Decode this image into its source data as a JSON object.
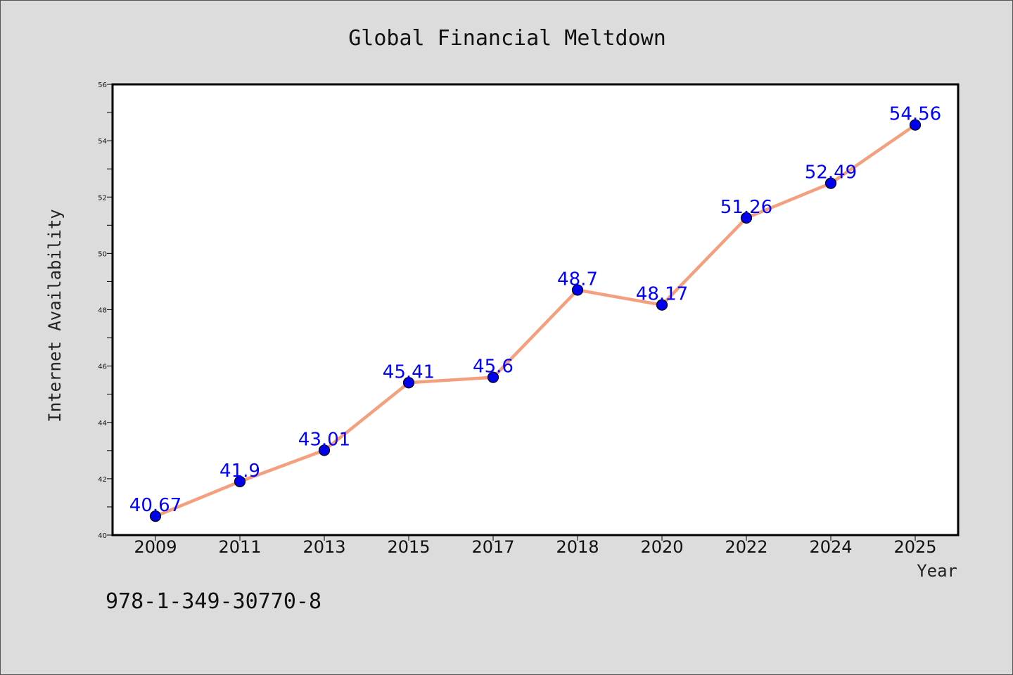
{
  "chart_data": {
    "type": "line",
    "title": "Global Financial Meltdown",
    "xlabel": "Year",
    "ylabel": "Internet Availability",
    "categories": [
      "2009",
      "2011",
      "2013",
      "2015",
      "2017",
      "2018",
      "2020",
      "2022",
      "2024",
      "2025"
    ],
    "values": [
      40.67,
      41.9,
      43.01,
      45.41,
      45.6,
      48.7,
      48.17,
      51.26,
      52.49,
      54.56
    ],
    "data_labels": [
      "40.67",
      "41.9",
      "43.01",
      "45.41",
      "45.6",
      "48.7",
      "48.17",
      "51.26",
      "52.49",
      "54.56"
    ],
    "ylim": [
      40,
      56
    ],
    "yticks": [
      40,
      42,
      44,
      46,
      48,
      50,
      52,
      54,
      56
    ],
    "grid": false,
    "line_color": "#f4a07f",
    "marker_color": "#0000ee",
    "label_color": "#0000ff"
  },
  "annotation": "978-1-349-30770-8"
}
